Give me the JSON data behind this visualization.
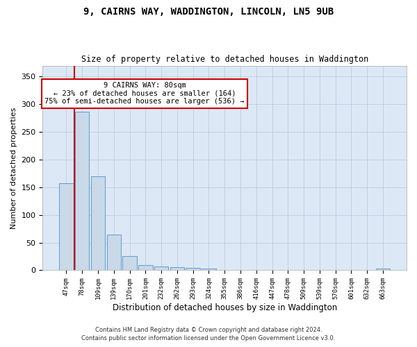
{
  "title": "9, CAIRNS WAY, WADDINGTON, LINCOLN, LN5 9UB",
  "subtitle": "Size of property relative to detached houses in Waddington",
  "xlabel": "Distribution of detached houses by size in Waddington",
  "ylabel": "Number of detached properties",
  "bar_color": "#c9d9e8",
  "bar_edge_color": "#5b9bd5",
  "categories": [
    "47sqm",
    "78sqm",
    "109sqm",
    "139sqm",
    "170sqm",
    "201sqm",
    "232sqm",
    "262sqm",
    "293sqm",
    "324sqm",
    "355sqm",
    "386sqm",
    "416sqm",
    "447sqm",
    "478sqm",
    "509sqm",
    "539sqm",
    "570sqm",
    "601sqm",
    "632sqm",
    "663sqm"
  ],
  "values": [
    157,
    287,
    170,
    65,
    26,
    10,
    7,
    6,
    4,
    3,
    0,
    0,
    0,
    0,
    0,
    0,
    0,
    0,
    0,
    0,
    3
  ],
  "ylim": [
    0,
    370
  ],
  "yticks": [
    0,
    50,
    100,
    150,
    200,
    250,
    300,
    350
  ],
  "annotation_title": "9 CAIRNS WAY: 80sqm",
  "annotation_line1": "← 23% of detached houses are smaller (164)",
  "annotation_line2": "75% of semi-detached houses are larger (536) →",
  "vline_color": "#cc0000",
  "background_color": "#dce8f5",
  "footer1": "Contains HM Land Registry data © Crown copyright and database right 2024.",
  "footer2": "Contains public sector information licensed under the Open Government Licence v3.0."
}
